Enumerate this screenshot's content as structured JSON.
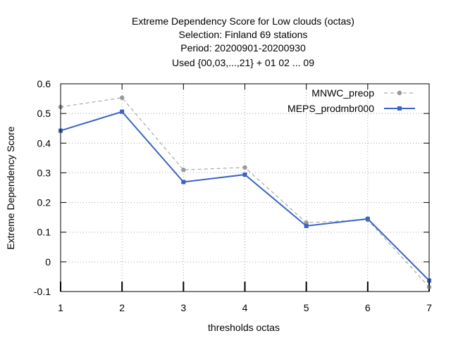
{
  "chart_data": {
    "type": "line",
    "title_lines": [
      "Extreme Dependency Score  for Low clouds (octas)",
      "Selection: Finland     69 stations",
      "Period: 20200901-20200930",
      "Used {00,03,...,21} + 01 02 ... 09"
    ],
    "xlabel": "thresholds octas",
    "ylabel": "Extreme Dependency Score",
    "x": [
      1,
      2,
      3,
      4,
      5,
      6,
      7
    ],
    "xlim": [
      1,
      7
    ],
    "ylim": [
      -0.1,
      0.6
    ],
    "yticks": [
      "-0.1",
      "0",
      "0.1",
      "0.2",
      "0.3",
      "0.4",
      "0.5",
      "0.6"
    ],
    "xticks": [
      "1",
      "2",
      "3",
      "4",
      "5",
      "6",
      "7"
    ],
    "grid": true,
    "legend_position": "top-right",
    "series": [
      {
        "name": "MNWC_preop",
        "color": "#999999",
        "dashed": true,
        "values": [
          0.522,
          0.553,
          0.31,
          0.318,
          0.132,
          0.142,
          -0.085
        ]
      },
      {
        "name": "MEPS_prodmbr000",
        "color": "#3b62c4",
        "dashed": false,
        "values": [
          0.442,
          0.506,
          0.269,
          0.294,
          0.121,
          0.145,
          -0.063
        ]
      }
    ]
  }
}
